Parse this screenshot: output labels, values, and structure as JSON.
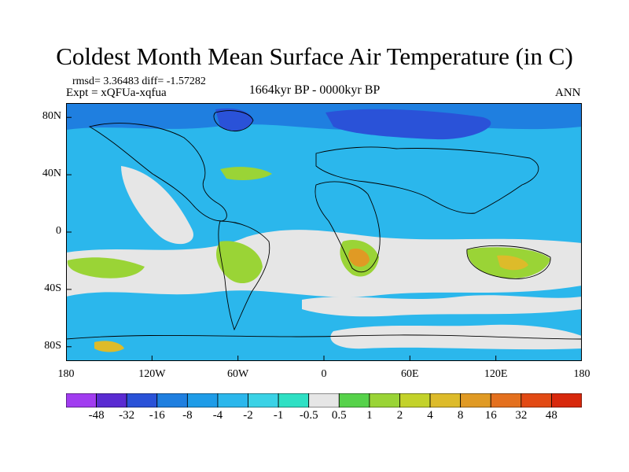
{
  "title": "Coldest Month Mean Surface Air Temperature (in C)",
  "stats": "rmsd= 3.36483 diff= -1.57282",
  "experiment": "Expt = xQFUa-xqfua",
  "period": "1664kyr BP - 0000kyr BP",
  "season": "ANN",
  "axes": {
    "y_labels": [
      "80N",
      "40N",
      "0",
      "40S",
      "80S"
    ],
    "y_values": [
      80,
      40,
      0,
      -40,
      -80
    ],
    "x_labels": [
      "180",
      "120W",
      "60W",
      "0",
      "60E",
      "120E",
      "180"
    ],
    "x_values": [
      -180,
      -120,
      -60,
      0,
      60,
      120,
      180
    ]
  },
  "colorbar": {
    "labels": [
      "-48",
      "-32",
      "-16",
      "-8",
      "-4",
      "-2",
      "-1",
      "-0.5",
      "0.5",
      "1",
      "2",
      "4",
      "8",
      "16",
      "32",
      "48"
    ],
    "colors": [
      "#a13cf0",
      "#5a2bd2",
      "#2a52d8",
      "#1f7fe0",
      "#1e9ce8",
      "#2bb7ec",
      "#3ad2e6",
      "#2ee0c4",
      "#e6e6e6",
      "#56d24a",
      "#9ad436",
      "#c3d22a",
      "#ddbb2a",
      "#e09a24",
      "#e4701e",
      "#e24a14",
      "#d8280c"
    ]
  },
  "colors": {
    "ocean_base": "#2bb7ec",
    "arctic_cold": "#1f7fe0",
    "siberia_cold": "#2a52d8",
    "neutral": "#e6e6e6",
    "warm_green": "#9ad436",
    "warm_yellow": "#ddbb2a",
    "warm_orange": "#e09a24",
    "coast": "#000000"
  }
}
